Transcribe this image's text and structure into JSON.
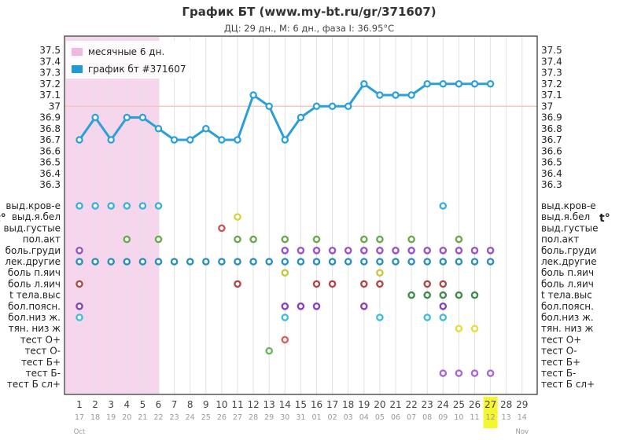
{
  "chart_data": {
    "type": "line",
    "title": "График БТ (www.my-bt.ru/gr/371607)",
    "subtitle": "ДЦ: 29 дн., М: 6 дн., фаза I: 36.95°C",
    "unit_label": "t°",
    "ylim": [
      36.3,
      37.5
    ],
    "yticks": [
      "37.5",
      "37.4",
      "37.3",
      "37.2",
      "37.1",
      "37",
      "36.9",
      "36.8",
      "36.7",
      "36.6",
      "36.5",
      "36.4",
      "36.3"
    ],
    "coverline": 37.0,
    "menses_days": 6,
    "cycle_days": [
      "1",
      "2",
      "3",
      "4",
      "5",
      "6",
      "7",
      "8",
      "9",
      "10",
      "11",
      "12",
      "13",
      "14",
      "15",
      "16",
      "17",
      "18",
      "19",
      "20",
      "21",
      "22",
      "23",
      "24",
      "25",
      "26",
      "27",
      "28",
      "29"
    ],
    "dates": [
      "17",
      "18",
      "19",
      "20",
      "21",
      "22",
      "23",
      "24",
      "25",
      "26",
      "27",
      "28",
      "29",
      "30",
      "31",
      "01",
      "02",
      "03",
      "04",
      "05",
      "06",
      "07",
      "08",
      "09",
      "10",
      "11",
      "12",
      "13",
      "14"
    ],
    "month_labels": [
      {
        "label": "Oct",
        "day": 1
      },
      {
        "label": "Nov",
        "day": 29
      }
    ],
    "highlight_day": 27,
    "legend": [
      {
        "label": "месячные 6 дн.",
        "color": "#f0b8e0"
      },
      {
        "label": "график бт #371607",
        "color": "#1e9bd7"
      }
    ],
    "series": [
      {
        "name": "график бт #371607",
        "color": "#2a9fd8",
        "values": [
          36.7,
          36.9,
          36.7,
          36.9,
          36.9,
          36.8,
          36.7,
          36.7,
          36.8,
          36.7,
          36.7,
          37.1,
          37.0,
          36.7,
          36.9,
          37.0,
          37.0,
          37.0,
          37.2,
          37.1,
          37.1,
          37.1,
          37.2,
          37.2,
          37.2,
          37.2,
          37.2,
          null,
          null
        ]
      }
    ],
    "symptom_rows": [
      {
        "label": "выд.кров-е",
        "color": "#3bb0e0",
        "days": [
          1,
          2,
          3,
          4,
          5,
          6,
          24
        ]
      },
      {
        "label": "выд.я.бел",
        "color": "#d6d640",
        "days": [
          11
        ]
      },
      {
        "label": "выд.густые",
        "color": "#cc5555",
        "days": [
          10
        ]
      },
      {
        "label": "пол.акт",
        "color": "#6aaa50",
        "days": [
          4,
          6,
          11,
          12,
          14,
          16,
          19,
          20,
          22,
          25
        ]
      },
      {
        "label": "боль.груди",
        "color": "#9955cc",
        "days": [
          1,
          14,
          15,
          16,
          17,
          18,
          19,
          20,
          21,
          22,
          23,
          24,
          25,
          26,
          27
        ]
      },
      {
        "label": "лек.другие",
        "color": "#2a90c0",
        "days": [
          1,
          2,
          3,
          4,
          5,
          6,
          7,
          8,
          9,
          10,
          11,
          12,
          13,
          14,
          15,
          16,
          17,
          18,
          19,
          20,
          21,
          22,
          23,
          24,
          25,
          26,
          27
        ]
      },
      {
        "label": "боль п.яич",
        "color": "#c8c840",
        "days": [
          14,
          20
        ]
      },
      {
        "label": "боль л.яич",
        "color": "#b04848",
        "days": [
          1,
          11,
          16,
          17,
          19,
          20,
          23,
          24
        ]
      },
      {
        "label": "t тела.выс",
        "color": "#3f8f4a",
        "days": [
          22,
          23,
          24,
          25,
          26
        ]
      },
      {
        "label": "бол.поясн.",
        "color": "#8a44bb",
        "days": [
          1,
          14,
          15,
          16,
          19,
          24
        ]
      },
      {
        "label": "бол.низ ж.",
        "color": "#40bde0",
        "days": [
          1,
          14,
          20,
          23,
          24
        ]
      },
      {
        "label": "тян. низ ж",
        "color": "#e0e040",
        "days": [
          25,
          26
        ]
      },
      {
        "label": "тест О+",
        "color": "#dd6060",
        "days": [
          14
        ]
      },
      {
        "label": "тест О-",
        "color": "#6ab860",
        "days": [
          13
        ]
      },
      {
        "label": "тест Б+",
        "color": "#999999",
        "days": []
      },
      {
        "label": "тест Б-",
        "color": "#aa66dd",
        "days": [
          24,
          25,
          26,
          27
        ]
      },
      {
        "label": "тест Б сл+",
        "color": "#999999",
        "days": []
      }
    ]
  }
}
